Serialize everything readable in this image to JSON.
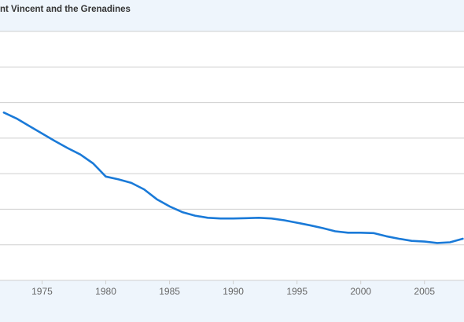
{
  "chart_data": {
    "type": "line",
    "title": "nt Vincent and the Grenadines",
    "xlabel": "",
    "ylabel": "",
    "xlim": [
      1971.7,
      2008.1
    ],
    "ylim": [
      0,
      7
    ],
    "grid": true,
    "x_ticks": [
      "1975",
      "1980",
      "1985",
      "1990",
      "1995",
      "2000",
      "2005"
    ],
    "colors": {
      "line": "#1a7ad8",
      "grid": "#cfcfcf",
      "plot_bg": "#ffffff",
      "page_bg": "#eef5fc"
    },
    "series": [
      {
        "x": [
          1972,
          1973,
          1974,
          1975,
          1976,
          1977,
          1978,
          1979,
          1980,
          1981,
          1982,
          1983,
          1984,
          1985,
          1986,
          1987,
          1988,
          1989,
          1990,
          1991,
          1992,
          1993,
          1994,
          1995,
          1996,
          1997,
          1998,
          1999,
          2000,
          2001,
          2002,
          2003,
          2004,
          2005,
          2006,
          2007,
          2008
        ],
        "values": [
          4.72,
          4.55,
          4.34,
          4.13,
          3.92,
          3.72,
          3.54,
          3.29,
          2.92,
          2.84,
          2.74,
          2.56,
          2.28,
          2.08,
          1.92,
          1.82,
          1.76,
          1.74,
          1.74,
          1.75,
          1.76,
          1.74,
          1.69,
          1.62,
          1.55,
          1.47,
          1.38,
          1.34,
          1.34,
          1.33,
          1.24,
          1.17,
          1.11,
          1.09,
          1.05,
          1.07,
          1.17
        ]
      }
    ]
  }
}
